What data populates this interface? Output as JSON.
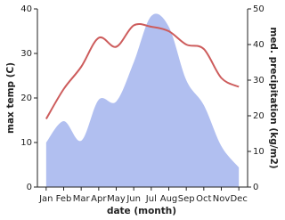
{
  "chart_data": {
    "type": "line_area",
    "categories": [
      "Jan",
      "Feb",
      "Mar",
      "Apr",
      "May",
      "Jun",
      "Jul",
      "Aug",
      "Sep",
      "Oct",
      "Nov",
      "Dec"
    ],
    "x_label": "date (month)",
    "y_label": "max temp (C)",
    "y2_label": "med. precipitation (kg/m2)",
    "ylim": [
      0,
      40
    ],
    "yticks": [
      0,
      10,
      20,
      30,
      40
    ],
    "y2lim": [
      0,
      50
    ],
    "y2ticks": [
      0,
      10,
      20,
      30,
      40,
      50
    ],
    "series": [
      {
        "name": "max temp",
        "color": "#cd5c5c",
        "values": [
          15.3,
          22,
          27,
          33.5,
          31.5,
          36.3,
          36,
          35,
          32,
          31,
          24.5,
          22.5
        ]
      },
      {
        "name": "med. precipitation",
        "color": "#b1bff0",
        "axis": "y2",
        "values": [
          12.5,
          18.5,
          13,
          24.5,
          24,
          35,
          48,
          45,
          30,
          23,
          11.5,
          5.5
        ]
      }
    ]
  }
}
